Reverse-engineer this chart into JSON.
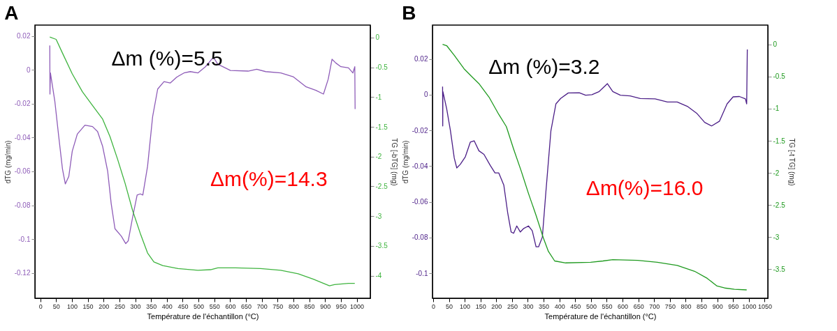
{
  "chart_data": [
    {
      "type": "line",
      "title": "A",
      "xlabel": "Température de l'échantillon (°C)",
      "ylabel": "dTG (mg/min)",
      "y2label": "TG [-bTG] (mg)",
      "xlim": [
        -17,
        1043
      ],
      "xticks": [
        0,
        50,
        100,
        150,
        200,
        250,
        300,
        350,
        400,
        450,
        500,
        550,
        600,
        650,
        700,
        750,
        800,
        850,
        900,
        950,
        1000
      ],
      "ylim": [
        -0.135,
        0.0265
      ],
      "yticks": [
        -0.12,
        -0.1,
        -0.08,
        -0.06,
        -0.04,
        -0.02,
        0,
        0.02
      ],
      "y2lim": [
        -4.38,
        0.21
      ],
      "y2ticks": [
        -4,
        -3.5,
        -3,
        -2.5,
        -2,
        -1.5,
        -1,
        -0.5,
        0
      ],
      "grid": false,
      "annotations": [
        "Δm (%)=5.5",
        "Δm(%)=14.3"
      ],
      "series": [
        {
          "color": "#8e5cb8",
          "x": [
            30,
            30.5,
            32,
            46,
            58,
            70,
            79,
            90,
            101,
            117,
            141,
            165,
            181,
            197,
            213,
            224,
            236,
            256,
            270,
            278,
            292,
            306,
            316,
            324,
            339,
            355,
            371,
            391,
            411,
            431,
            454,
            474,
            498,
            522,
            547,
            561,
            601,
            657,
            684,
            712,
            760,
            799,
            839,
            871,
            895,
            910,
            922,
            934,
            950,
            974,
            988,
            994,
            995
          ],
          "values": [
            0.0144,
            -0.0143,
            -0.0018,
            -0.0187,
            -0.039,
            -0.0585,
            -0.0674,
            -0.063,
            -0.048,
            -0.0379,
            -0.0327,
            -0.0335,
            -0.0364,
            -0.0452,
            -0.06,
            -0.079,
            -0.0939,
            -0.0983,
            -0.1027,
            -0.101,
            -0.0869,
            -0.074,
            -0.0733,
            -0.074,
            -0.057,
            -0.0276,
            -0.0113,
            -0.0069,
            -0.0077,
            -0.0043,
            -0.0018,
            -0.001,
            -0.0018,
            0.0019,
            0.0075,
            0.0034,
            -0.0003,
            -0.0007,
            0.0004,
            -0.001,
            -0.0018,
            -0.004,
            -0.0099,
            -0.0121,
            -0.0143,
            -0.0055,
            0.0063,
            0.0041,
            0.0019,
            0.0012,
            -0.0018,
            0.0019,
            -0.0231
          ]
        },
        {
          "color": "#3fb43f",
          "axis": "y2",
          "x": [
            30,
            50,
            70,
            101,
            133,
            165,
            197,
            220,
            244,
            268,
            292,
            316,
            339,
            359,
            387,
            435,
            498,
            538,
            561,
            617,
            696,
            760,
            815,
            863,
            895,
            914,
            930,
            974,
            994
          ],
          "values": [
            0.01,
            -0.03,
            -0.26,
            -0.61,
            -0.91,
            -1.14,
            -1.37,
            -1.66,
            -2.04,
            -2.45,
            -2.91,
            -3.29,
            -3.62,
            -3.77,
            -3.83,
            -3.88,
            -3.91,
            -3.9,
            -3.87,
            -3.87,
            -3.88,
            -3.91,
            -3.97,
            -4.06,
            -4.13,
            -4.17,
            -4.15,
            -4.13,
            -4.13
          ]
        }
      ]
    },
    {
      "type": "line",
      "title": "B",
      "xlabel": "Température de l'échantillon (°C)",
      "ylabel": "dTG (mg/min)",
      "y2label": "TG [-t TG] (mg)",
      "xlim": [
        -2,
        1060
      ],
      "xticks": [
        0,
        50,
        100,
        150,
        200,
        250,
        300,
        350,
        400,
        450,
        500,
        550,
        600,
        650,
        700,
        750,
        800,
        850,
        900,
        950,
        1000,
        1050
      ],
      "ylim": [
        -0.114,
        0.039
      ],
      "yticks": [
        -0.1,
        -0.08,
        -0.06,
        -0.04,
        -0.02,
        0,
        0.02
      ],
      "y2lim": [
        -3.95,
        0.3
      ],
      "y2ticks": [
        -3.5,
        -3,
        -2.5,
        -2,
        -1.5,
        -1,
        -0.5,
        0
      ],
      "grid": false,
      "annotations": [
        "Δm (%)=3.2",
        "Δm(%)=16.0"
      ],
      "series": [
        {
          "color": "#4b1e87",
          "x": [
            30,
            30.5,
            31,
            43,
            55,
            67,
            75,
            86,
            102,
            118,
            130,
            145,
            161,
            181,
            196,
            208,
            224,
            236,
            247,
            255,
            265,
            276,
            287,
            302,
            314,
            326,
            334,
            346,
            357,
            373,
            389,
            404,
            428,
            463,
            483,
            503,
            526,
            552,
            569,
            593,
            624,
            656,
            703,
            742,
            773,
            805,
            836,
            860,
            882,
            907,
            931,
            950,
            970,
            989,
            993,
            995
          ],
          "values": [
            0.0046,
            -0.0175,
            0.0018,
            -0.0079,
            -0.0203,
            -0.0355,
            -0.041,
            -0.039,
            -0.0348,
            -0.0265,
            -0.0258,
            -0.0314,
            -0.0334,
            -0.0396,
            -0.0438,
            -0.0438,
            -0.0507,
            -0.0659,
            -0.0769,
            -0.0776,
            -0.0735,
            -0.0769,
            -0.0749,
            -0.0735,
            -0.0762,
            -0.0852,
            -0.0852,
            -0.0797,
            -0.0548,
            -0.0203,
            -0.0051,
            -0.0021,
            0.001,
            0.0011,
            -0.0003,
            0,
            0.0018,
            0.0062,
            0.0018,
            -0.0003,
            -0.0007,
            -0.0021,
            -0.0023,
            -0.0041,
            -0.0041,
            -0.0065,
            -0.0106,
            -0.0155,
            -0.0175,
            -0.0148,
            -0.0051,
            -0.0012,
            -0.001,
            -0.0023,
            -0.0051,
            0.0253
          ]
        },
        {
          "color": "#1f9a1f",
          "axis": "y2",
          "x": [
            30,
            43,
            67,
            98,
            122,
            145,
            177,
            208,
            232,
            255,
            279,
            302,
            326,
            349,
            365,
            385,
            420,
            499,
            538,
            569,
            648,
            710,
            773,
            828,
            868,
            899,
            923,
            954,
            993
          ],
          "values": [
            0,
            -0.02,
            -0.17,
            -0.38,
            -0.5,
            -0.61,
            -0.82,
            -1.09,
            -1.28,
            -1.63,
            -1.97,
            -2.32,
            -2.66,
            -3.01,
            -3.22,
            -3.37,
            -3.4,
            -3.39,
            -3.37,
            -3.35,
            -3.36,
            -3.39,
            -3.44,
            -3.53,
            -3.64,
            -3.76,
            -3.79,
            -3.81,
            -3.82
          ]
        }
      ]
    }
  ]
}
